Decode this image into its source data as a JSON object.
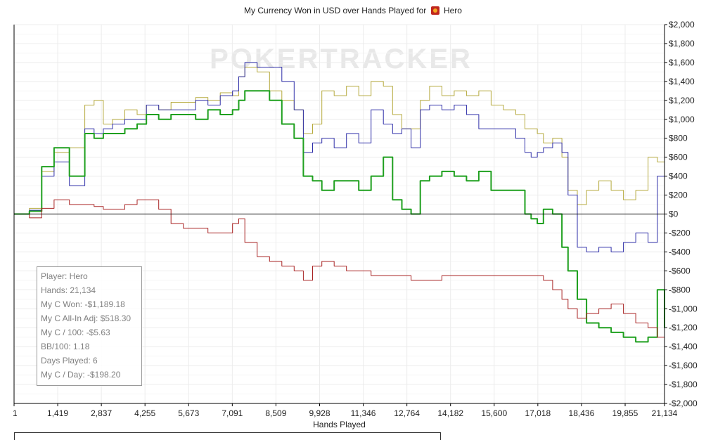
{
  "title": {
    "text": "My Currency Won in USD over Hands Played for",
    "player": "Hero"
  },
  "watermark": "POKERTRACKER",
  "stats": [
    "Player: Hero",
    "Hands: 21,134",
    "My C Won: -$1,189.18",
    "My C All-In Adj: $518.30",
    "My C / 100: -$5.63",
    "BB/100: 1.18",
    "Days Played: 6",
    "My C / Day: -$198.20"
  ],
  "chart_data": {
    "type": "line",
    "title": "My Currency Won in USD over Hands Played for Hero",
    "xlabel": "Hands Played",
    "ylabel": "",
    "xlim": [
      1,
      21134
    ],
    "ylim": [
      -2000,
      2000
    ],
    "x_ticks": [
      1,
      1419,
      2837,
      4255,
      5673,
      7091,
      8509,
      9928,
      11346,
      12764,
      14182,
      15600,
      17018,
      18436,
      19855,
      21134
    ],
    "x_tick_labels": [
      "1",
      "1,419",
      "2,837",
      "4,255",
      "5,673",
      "7,091",
      "8,509",
      "9,928",
      "11,346",
      "12,764",
      "14,182",
      "15,600",
      "17,018",
      "18,436",
      "19,855",
      "21,134"
    ],
    "y_ticks": [
      2000,
      1800,
      1600,
      1400,
      1200,
      1000,
      800,
      600,
      400,
      200,
      0,
      -200,
      -400,
      -600,
      -800,
      -1000,
      -1200,
      -1400,
      -1600,
      -1800,
      -2000
    ],
    "y_tick_labels": [
      "$2,000",
      "$1,800",
      "$1,600",
      "$1,400",
      "$1,200",
      "$1,000",
      "$800",
      "$600",
      "$400",
      "$200",
      "$0",
      "-$200",
      "-$400",
      "-$600",
      "-$800",
      "-$1,000",
      "-$1,200",
      "-$1,400",
      "-$1,600",
      "-$1,800",
      "-$2,000"
    ],
    "grid": true,
    "series": [
      {
        "color": "#b5a93c",
        "width": 1,
        "x": [
          1,
          500,
          900,
          1300,
          1800,
          2300,
          2600,
          2900,
          3200,
          3600,
          4000,
          4300,
          4700,
          5100,
          5500,
          5900,
          6300,
          6700,
          7100,
          7300,
          7500,
          7900,
          8300,
          8700,
          9100,
          9400,
          9700,
          10000,
          10400,
          10800,
          11200,
          11600,
          12000,
          12300,
          12600,
          12900,
          13200,
          13500,
          13900,
          14300,
          14700,
          15100,
          15500,
          15900,
          16300,
          16600,
          16800,
          17000,
          17200,
          17500,
          17800,
          18000,
          18300,
          18600,
          19000,
          19400,
          19800,
          20200,
          20600,
          20900,
          21134
        ],
        "y": [
          0,
          60,
          450,
          650,
          700,
          1150,
          1200,
          950,
          1000,
          1100,
          1050,
          1150,
          1100,
          1180,
          1180,
          1230,
          1200,
          1280,
          1250,
          1450,
          1550,
          1500,
          1300,
          1200,
          1100,
          850,
          950,
          1300,
          1250,
          1350,
          1250,
          1400,
          1350,
          1050,
          900,
          900,
          1200,
          1350,
          1250,
          1300,
          1250,
          1300,
          1150,
          1100,
          1050,
          900,
          900,
          850,
          750,
          800,
          600,
          250,
          100,
          250,
          350,
          250,
          150,
          250,
          600,
          550,
          400
        ]
      },
      {
        "color": "#2e2ea8",
        "width": 1,
        "x": [
          1,
          500,
          900,
          1300,
          1800,
          2300,
          2600,
          2900,
          3200,
          3600,
          4000,
          4300,
          4700,
          5100,
          5500,
          5900,
          6300,
          6700,
          7100,
          7300,
          7500,
          7900,
          8300,
          8700,
          9100,
          9400,
          9700,
          10000,
          10400,
          10800,
          11200,
          11600,
          12000,
          12300,
          12600,
          12900,
          13200,
          13500,
          13900,
          14300,
          14700,
          15100,
          15500,
          15900,
          16300,
          16600,
          16800,
          17000,
          17200,
          17500,
          17800,
          18000,
          18300,
          18600,
          19000,
          19400,
          19800,
          20200,
          20600,
          20900,
          21134
        ],
        "y": [
          0,
          40,
          400,
          550,
          300,
          900,
          850,
          900,
          950,
          1000,
          1000,
          1150,
          1100,
          1100,
          1100,
          1200,
          1150,
          1250,
          1300,
          1450,
          1600,
          1550,
          1550,
          1400,
          1100,
          650,
          750,
          800,
          700,
          850,
          750,
          1100,
          950,
          850,
          900,
          700,
          1100,
          1150,
          1100,
          1150,
          1050,
          900,
          900,
          900,
          800,
          650,
          600,
          650,
          700,
          750,
          650,
          200,
          -350,
          -400,
          -350,
          -400,
          -300,
          -200,
          -300,
          400,
          100
        ]
      },
      {
        "color": "#1fa01f",
        "width": 2,
        "x": [
          1,
          500,
          900,
          1300,
          1800,
          2300,
          2600,
          2900,
          3200,
          3600,
          4000,
          4300,
          4700,
          5100,
          5500,
          5900,
          6300,
          6700,
          7100,
          7300,
          7500,
          7900,
          8300,
          8700,
          9100,
          9400,
          9700,
          10000,
          10400,
          10800,
          11200,
          11600,
          12000,
          12300,
          12600,
          12900,
          13200,
          13500,
          13900,
          14300,
          14700,
          15100,
          15500,
          15900,
          16300,
          16600,
          16800,
          17000,
          17200,
          17500,
          17800,
          18000,
          18300,
          18600,
          19000,
          19400,
          19800,
          20200,
          20600,
          20900,
          21134
        ],
        "y": [
          0,
          30,
          500,
          700,
          400,
          850,
          800,
          850,
          850,
          900,
          950,
          1050,
          1000,
          1050,
          1050,
          1000,
          1100,
          1050,
          1100,
          1200,
          1300,
          1300,
          1200,
          950,
          800,
          400,
          350,
          250,
          350,
          350,
          250,
          400,
          600,
          150,
          50,
          0,
          350,
          400,
          450,
          400,
          350,
          450,
          250,
          250,
          250,
          0,
          -50,
          -100,
          50,
          0,
          -350,
          -600,
          -900,
          -1150,
          -1200,
          -1250,
          -1300,
          -1350,
          -1300,
          -800,
          -1200
        ]
      },
      {
        "color": "#a82222",
        "width": 1,
        "x": [
          1,
          500,
          900,
          1300,
          1800,
          2300,
          2600,
          2900,
          3200,
          3600,
          4000,
          4300,
          4700,
          5100,
          5500,
          5900,
          6300,
          6700,
          7100,
          7300,
          7500,
          7900,
          8300,
          8700,
          9100,
          9400,
          9700,
          10000,
          10400,
          10800,
          11200,
          11600,
          12000,
          12300,
          12600,
          12900,
          13200,
          13500,
          13900,
          14300,
          14700,
          15100,
          15500,
          15900,
          16300,
          16600,
          16800,
          17000,
          17200,
          17500,
          17800,
          18000,
          18300,
          18600,
          19000,
          19400,
          19800,
          20200,
          20600,
          20900,
          21134
        ],
        "y": [
          0,
          -40,
          60,
          150,
          100,
          100,
          80,
          50,
          50,
          100,
          150,
          150,
          50,
          -100,
          -150,
          -150,
          -200,
          -200,
          -100,
          -50,
          -300,
          -450,
          -500,
          -550,
          -600,
          -700,
          -550,
          -500,
          -550,
          -600,
          -600,
          -650,
          -650,
          -650,
          -650,
          -700,
          -700,
          -700,
          -650,
          -650,
          -650,
          -650,
          -650,
          -650,
          -650,
          -650,
          -650,
          -650,
          -700,
          -800,
          -900,
          -1000,
          -1100,
          -1050,
          -1000,
          -950,
          -1050,
          -1150,
          -1200,
          -1300,
          -1350
        ]
      }
    ]
  }
}
